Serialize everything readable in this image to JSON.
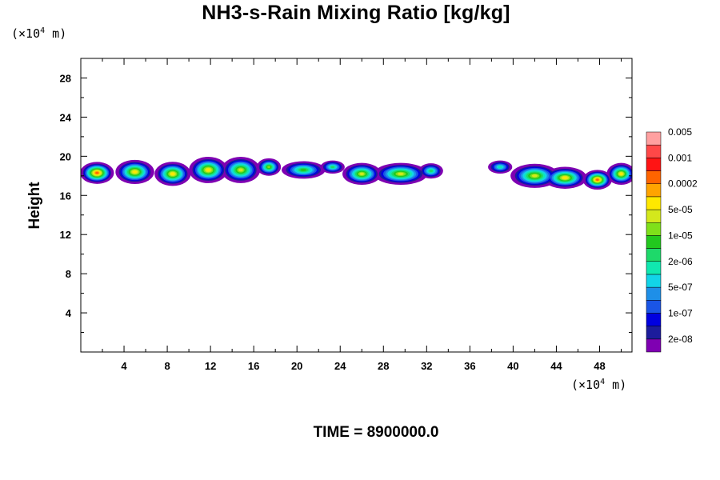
{
  "chart_data": {
    "type": "heatmap",
    "title": "NH3-s-Rain Mixing Ratio [kg/kg]",
    "xlabel": "",
    "ylabel": "Height",
    "x_unit_label": "(×10",
    "x_unit_exp": "4",
    "x_unit_tail": " m)",
    "y_unit_label": "(×10",
    "y_unit_exp": "4",
    "y_unit_tail": " m)",
    "xlim": [
      0,
      51
    ],
    "ylim": [
      0,
      30
    ],
    "x_ticks": [
      4,
      8,
      12,
      16,
      20,
      24,
      28,
      32,
      36,
      40,
      44,
      48
    ],
    "y_ticks": [
      4,
      8,
      12,
      16,
      20,
      24,
      28
    ],
    "colorbar": {
      "colors": [
        "#7f00b2",
        "#1c1c9c",
        "#0000e0",
        "#1a55e6",
        "#1e8fe8",
        "#12d4e8",
        "#10e8b0",
        "#1ed96a",
        "#22c81e",
        "#7fe01a",
        "#d4e81c",
        "#ffe800",
        "#ffa400",
        "#ff6400",
        "#ff1414",
        "#ff4848",
        "#ffa0a0"
      ],
      "labels": [
        "2e-08",
        "1e-07",
        "5e-07",
        "2e-06",
        "1e-05",
        "5e-05",
        "0.0002",
        "0.001",
        "0.005"
      ]
    },
    "cells": [
      {
        "x": 1.5,
        "y": 18.3,
        "rx": 1.4,
        "ry": 1.0,
        "level": 13
      },
      {
        "x": 5.0,
        "y": 18.4,
        "rx": 1.6,
        "ry": 1.1,
        "level": 11
      },
      {
        "x": 8.5,
        "y": 18.2,
        "rx": 1.5,
        "ry": 1.1,
        "level": 11
      },
      {
        "x": 11.8,
        "y": 18.6,
        "rx": 1.6,
        "ry": 1.2,
        "level": 11
      },
      {
        "x": 14.8,
        "y": 18.6,
        "rx": 1.6,
        "ry": 1.2,
        "level": 10
      },
      {
        "x": 17.4,
        "y": 18.9,
        "rx": 1.0,
        "ry": 0.8,
        "level": 9
      },
      {
        "x": 20.6,
        "y": 18.6,
        "rx": 1.8,
        "ry": 0.8,
        "level": 8
      },
      {
        "x": 23.3,
        "y": 18.9,
        "rx": 1.0,
        "ry": 0.6,
        "level": 7
      },
      {
        "x": 26.0,
        "y": 18.2,
        "rx": 1.6,
        "ry": 1.0,
        "level": 10
      },
      {
        "x": 29.6,
        "y": 18.2,
        "rx": 2.2,
        "ry": 1.0,
        "level": 10
      },
      {
        "x": 32.4,
        "y": 18.5,
        "rx": 1.0,
        "ry": 0.7,
        "level": 7
      },
      {
        "x": 38.8,
        "y": 18.9,
        "rx": 1.0,
        "ry": 0.6,
        "level": 6
      },
      {
        "x": 42.0,
        "y": 18.0,
        "rx": 2.0,
        "ry": 1.1,
        "level": 10
      },
      {
        "x": 44.8,
        "y": 17.8,
        "rx": 1.8,
        "ry": 1.0,
        "level": 11
      },
      {
        "x": 47.8,
        "y": 17.6,
        "rx": 1.2,
        "ry": 0.9,
        "level": 13
      },
      {
        "x": 50.0,
        "y": 18.2,
        "rx": 1.2,
        "ry": 1.0,
        "level": 11
      }
    ]
  },
  "time_label": "TIME = 8900000.0"
}
